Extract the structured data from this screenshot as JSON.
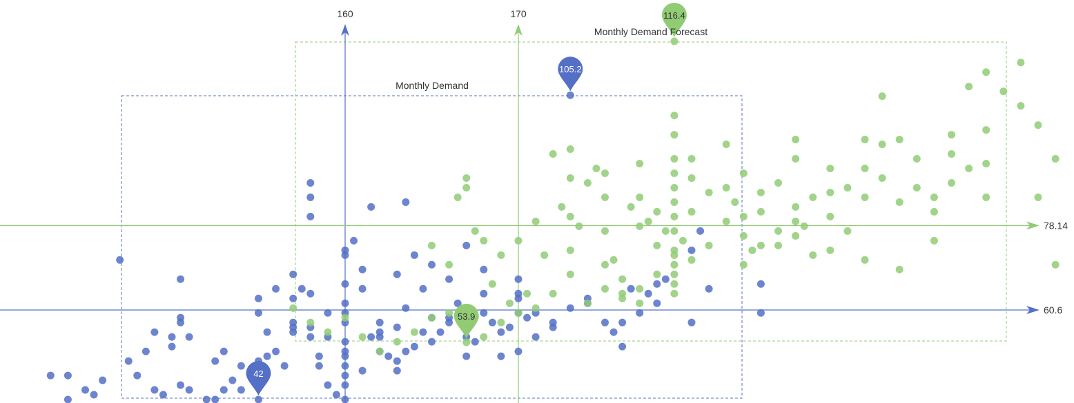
{
  "chart_data": {
    "type": "scatter",
    "title": "",
    "xlabel": "",
    "ylabel": "",
    "x_markers": [
      160,
      170
    ],
    "y_markers": [
      60.6,
      78.14
    ],
    "series": [
      {
        "name": "Monthly Demand",
        "color": "#5470c6",
        "label_text": "Monthly Demand",
        "mark_point_labels": [
          "105.2",
          "42"
        ],
        "points": [
          [
            143,
            47
          ],
          [
            144,
            42
          ],
          [
            145.5,
            43
          ],
          [
            147,
            71
          ],
          [
            148,
            47
          ],
          [
            149,
            44
          ],
          [
            149.5,
            43
          ],
          [
            150,
            55
          ],
          [
            150.5,
            67
          ],
          [
            150.5,
            45
          ],
          [
            150.5,
            58
          ],
          [
            150.5,
            59
          ],
          [
            151,
            44
          ],
          [
            152,
            42
          ],
          [
            152.5,
            42
          ],
          [
            153,
            52
          ],
          [
            153,
            44
          ],
          [
            153.5,
            46
          ],
          [
            154,
            44
          ],
          [
            155.5,
            51
          ],
          [
            156,
            52
          ],
          [
            157,
            63
          ],
          [
            157,
            58
          ],
          [
            157,
            57
          ],
          [
            157.5,
            65
          ],
          [
            158,
            55
          ],
          [
            158,
            57
          ],
          [
            158.5,
            49
          ],
          [
            159,
            45
          ],
          [
            159.5,
            43
          ],
          [
            160,
            52
          ],
          [
            160,
            51
          ],
          [
            160,
            49
          ],
          [
            160,
            47
          ],
          [
            160,
            45
          ],
          [
            160,
            42
          ],
          [
            160,
            58
          ],
          [
            160,
            60
          ],
          [
            160,
            62
          ],
          [
            160,
            73
          ],
          [
            160,
            72
          ],
          [
            160,
            66
          ],
          [
            161,
            69
          ],
          [
            161,
            65
          ],
          [
            161.5,
            55
          ],
          [
            162,
            58
          ],
          [
            162,
            56
          ],
          [
            162,
            52
          ],
          [
            162.5,
            51
          ],
          [
            163,
            57
          ],
          [
            163,
            50
          ],
          [
            163,
            48
          ],
          [
            163.5,
            61
          ],
          [
            163.5,
            52
          ],
          [
            164,
            53
          ],
          [
            164.5,
            65
          ],
          [
            164.5,
            56
          ],
          [
            165,
            59
          ],
          [
            165,
            54
          ],
          [
            165.5,
            56
          ],
          [
            166,
            59
          ],
          [
            166,
            58
          ],
          [
            167,
            51
          ],
          [
            167,
            55
          ],
          [
            168,
            60
          ],
          [
            168,
            64
          ],
          [
            168.5,
            58
          ],
          [
            169,
            56
          ],
          [
            169.5,
            57
          ],
          [
            170,
            60
          ],
          [
            170,
            52
          ],
          [
            170,
            63
          ],
          [
            170,
            64
          ],
          [
            170,
            67
          ],
          [
            170.5,
            59
          ],
          [
            171,
            60
          ],
          [
            172,
            58
          ],
          [
            173,
            61
          ],
          [
            174,
            63
          ],
          [
            175,
            58
          ],
          [
            175.5,
            56
          ],
          [
            176,
            53
          ],
          [
            176,
            58
          ],
          [
            176.5,
            65
          ],
          [
            177,
            60
          ],
          [
            177.5,
            64
          ],
          [
            178,
            66
          ],
          [
            178,
            62
          ],
          [
            178.5,
            67
          ],
          [
            180,
            73
          ],
          [
            180,
            58
          ],
          [
            181,
            65
          ],
          [
            184,
            66
          ],
          [
            184,
            60
          ],
          [
            180.5,
            77
          ],
          [
            173,
            105.2
          ],
          [
            155,
            42
          ],
          [
            158,
            84
          ],
          [
            158,
            80
          ],
          [
            158,
            87
          ],
          [
            159,
            55
          ],
          [
            159,
            60
          ],
          [
            155,
            60
          ],
          [
            155,
            63
          ],
          [
            156,
            65
          ],
          [
            157,
            68
          ],
          [
            155.5,
            56
          ],
          [
            158,
            64
          ],
          [
            160.5,
            75
          ],
          [
            161.5,
            82
          ],
          [
            165,
            70
          ],
          [
            164,
            72
          ],
          [
            167,
            74
          ],
          [
            163.5,
            83
          ],
          [
            166,
            67
          ],
          [
            167.5,
            54
          ],
          [
            169,
            51
          ],
          [
            171,
            55
          ],
          [
            172,
            57
          ],
          [
            174,
            62
          ],
          [
            168,
            69
          ],
          [
            166.5,
            62
          ],
          [
            163,
            68
          ],
          [
            162,
            55
          ],
          [
            161,
            48
          ],
          [
            160,
            54
          ],
          [
            158.5,
            51
          ],
          [
            157,
            56
          ],
          [
            156.5,
            49
          ],
          [
            155,
            50
          ],
          [
            154,
            49
          ],
          [
            152.5,
            50
          ],
          [
            151,
            55
          ],
          [
            150,
            53
          ],
          [
            149,
            56
          ],
          [
            148.5,
            52
          ],
          [
            147.5,
            50
          ],
          [
            146,
            46
          ],
          [
            145,
            44
          ],
          [
            144,
            47
          ]
        ]
      },
      {
        "name": "Monthly Demand Forecast",
        "color": "#91cc75",
        "label_text": "Monthly Demand Forecast",
        "mark_point_labels": [
          "116.4",
          "53.9"
        ],
        "points": [
          [
            167,
            53.9
          ],
          [
            179,
            116.4
          ],
          [
            165,
            74
          ],
          [
            166,
            70
          ],
          [
            166.5,
            84
          ],
          [
            167,
            86
          ],
          [
            167,
            88
          ],
          [
            167.5,
            77
          ],
          [
            168,
            75
          ],
          [
            168.5,
            66
          ],
          [
            169,
            72
          ],
          [
            169.5,
            62
          ],
          [
            170,
            75
          ],
          [
            170.5,
            64
          ],
          [
            171,
            79
          ],
          [
            171.5,
            72
          ],
          [
            172,
            93
          ],
          [
            172.5,
            82
          ],
          [
            173,
            94
          ],
          [
            173,
            88
          ],
          [
            173,
            80
          ],
          [
            173,
            73
          ],
          [
            173.5,
            78
          ],
          [
            174,
            87
          ],
          [
            174.5,
            90
          ],
          [
            175,
            89
          ],
          [
            175,
            84
          ],
          [
            175,
            77
          ],
          [
            175,
            70
          ],
          [
            175.5,
            71
          ],
          [
            176,
            67
          ],
          [
            176.5,
            82
          ],
          [
            177,
            91
          ],
          [
            177,
            84
          ],
          [
            177,
            78
          ],
          [
            177.5,
            79
          ],
          [
            178,
            81
          ],
          [
            178,
            74
          ],
          [
            178.5,
            77
          ],
          [
            179,
            86
          ],
          [
            179,
            83
          ],
          [
            179,
            80
          ],
          [
            179,
            77
          ],
          [
            179,
            73
          ],
          [
            179,
            70
          ],
          [
            179,
            97
          ],
          [
            179,
            101
          ],
          [
            179,
            89
          ],
          [
            179,
            92
          ],
          [
            179.5,
            75
          ],
          [
            180,
            81
          ],
          [
            180,
            92
          ],
          [
            180,
            88
          ],
          [
            181,
            85
          ],
          [
            181,
            74
          ],
          [
            182,
            95
          ],
          [
            182,
            86
          ],
          [
            182,
            79
          ],
          [
            182.5,
            83
          ],
          [
            183,
            89
          ],
          [
            183,
            80
          ],
          [
            183,
            76
          ],
          [
            183.5,
            73
          ],
          [
            184,
            81
          ],
          [
            184,
            85
          ],
          [
            185,
            77
          ],
          [
            185,
            74
          ],
          [
            185,
            87
          ],
          [
            186,
            82
          ],
          [
            186,
            92
          ],
          [
            186,
            96
          ],
          [
            186,
            79
          ],
          [
            186.5,
            78
          ],
          [
            187,
            84
          ],
          [
            188,
            90
          ],
          [
            188,
            85
          ],
          [
            188,
            80
          ],
          [
            188,
            73
          ],
          [
            189,
            86
          ],
          [
            189,
            77
          ],
          [
            190,
            90
          ],
          [
            190,
            84
          ],
          [
            190,
            96
          ],
          [
            191,
            105
          ],
          [
            191,
            95
          ],
          [
            191,
            88
          ],
          [
            192,
            83
          ],
          [
            192,
            96
          ],
          [
            193,
            92
          ],
          [
            193,
            86
          ],
          [
            194,
            81
          ],
          [
            194,
            84
          ],
          [
            195,
            87
          ],
          [
            195,
            93
          ],
          [
            195,
            97
          ],
          [
            196,
            90
          ],
          [
            196,
            107
          ],
          [
            197,
            84
          ],
          [
            197,
            91
          ],
          [
            197,
            110
          ],
          [
            197,
            98
          ],
          [
            198,
            106
          ],
          [
            199,
            112
          ],
          [
            199,
            103
          ],
          [
            200,
            99
          ],
          [
            200,
            84
          ],
          [
            201,
            92
          ],
          [
            201,
            70
          ],
          [
            194,
            75
          ],
          [
            192,
            69
          ],
          [
            190,
            71
          ],
          [
            187,
            72
          ],
          [
            186,
            76
          ],
          [
            184,
            74
          ],
          [
            183,
            70
          ],
          [
            180,
            71
          ],
          [
            179,
            72
          ],
          [
            178,
            68
          ],
          [
            177,
            65
          ],
          [
            176,
            63
          ],
          [
            175,
            65
          ],
          [
            174,
            62
          ],
          [
            173,
            68
          ],
          [
            172,
            64
          ],
          [
            171,
            61
          ],
          [
            170,
            60
          ],
          [
            169,
            58
          ],
          [
            168,
            55
          ],
          [
            167,
            57
          ],
          [
            166,
            60
          ],
          [
            165,
            59
          ],
          [
            164,
            56
          ],
          [
            163,
            54
          ],
          [
            162,
            52
          ],
          [
            161,
            55
          ],
          [
            160,
            59
          ],
          [
            159,
            56
          ],
          [
            158,
            58
          ],
          [
            157,
            61
          ],
          [
            179,
            64
          ],
          [
            179,
            66
          ],
          [
            179,
            68
          ],
          [
            177,
            62
          ],
          [
            176,
            64
          ]
        ]
      }
    ]
  }
}
